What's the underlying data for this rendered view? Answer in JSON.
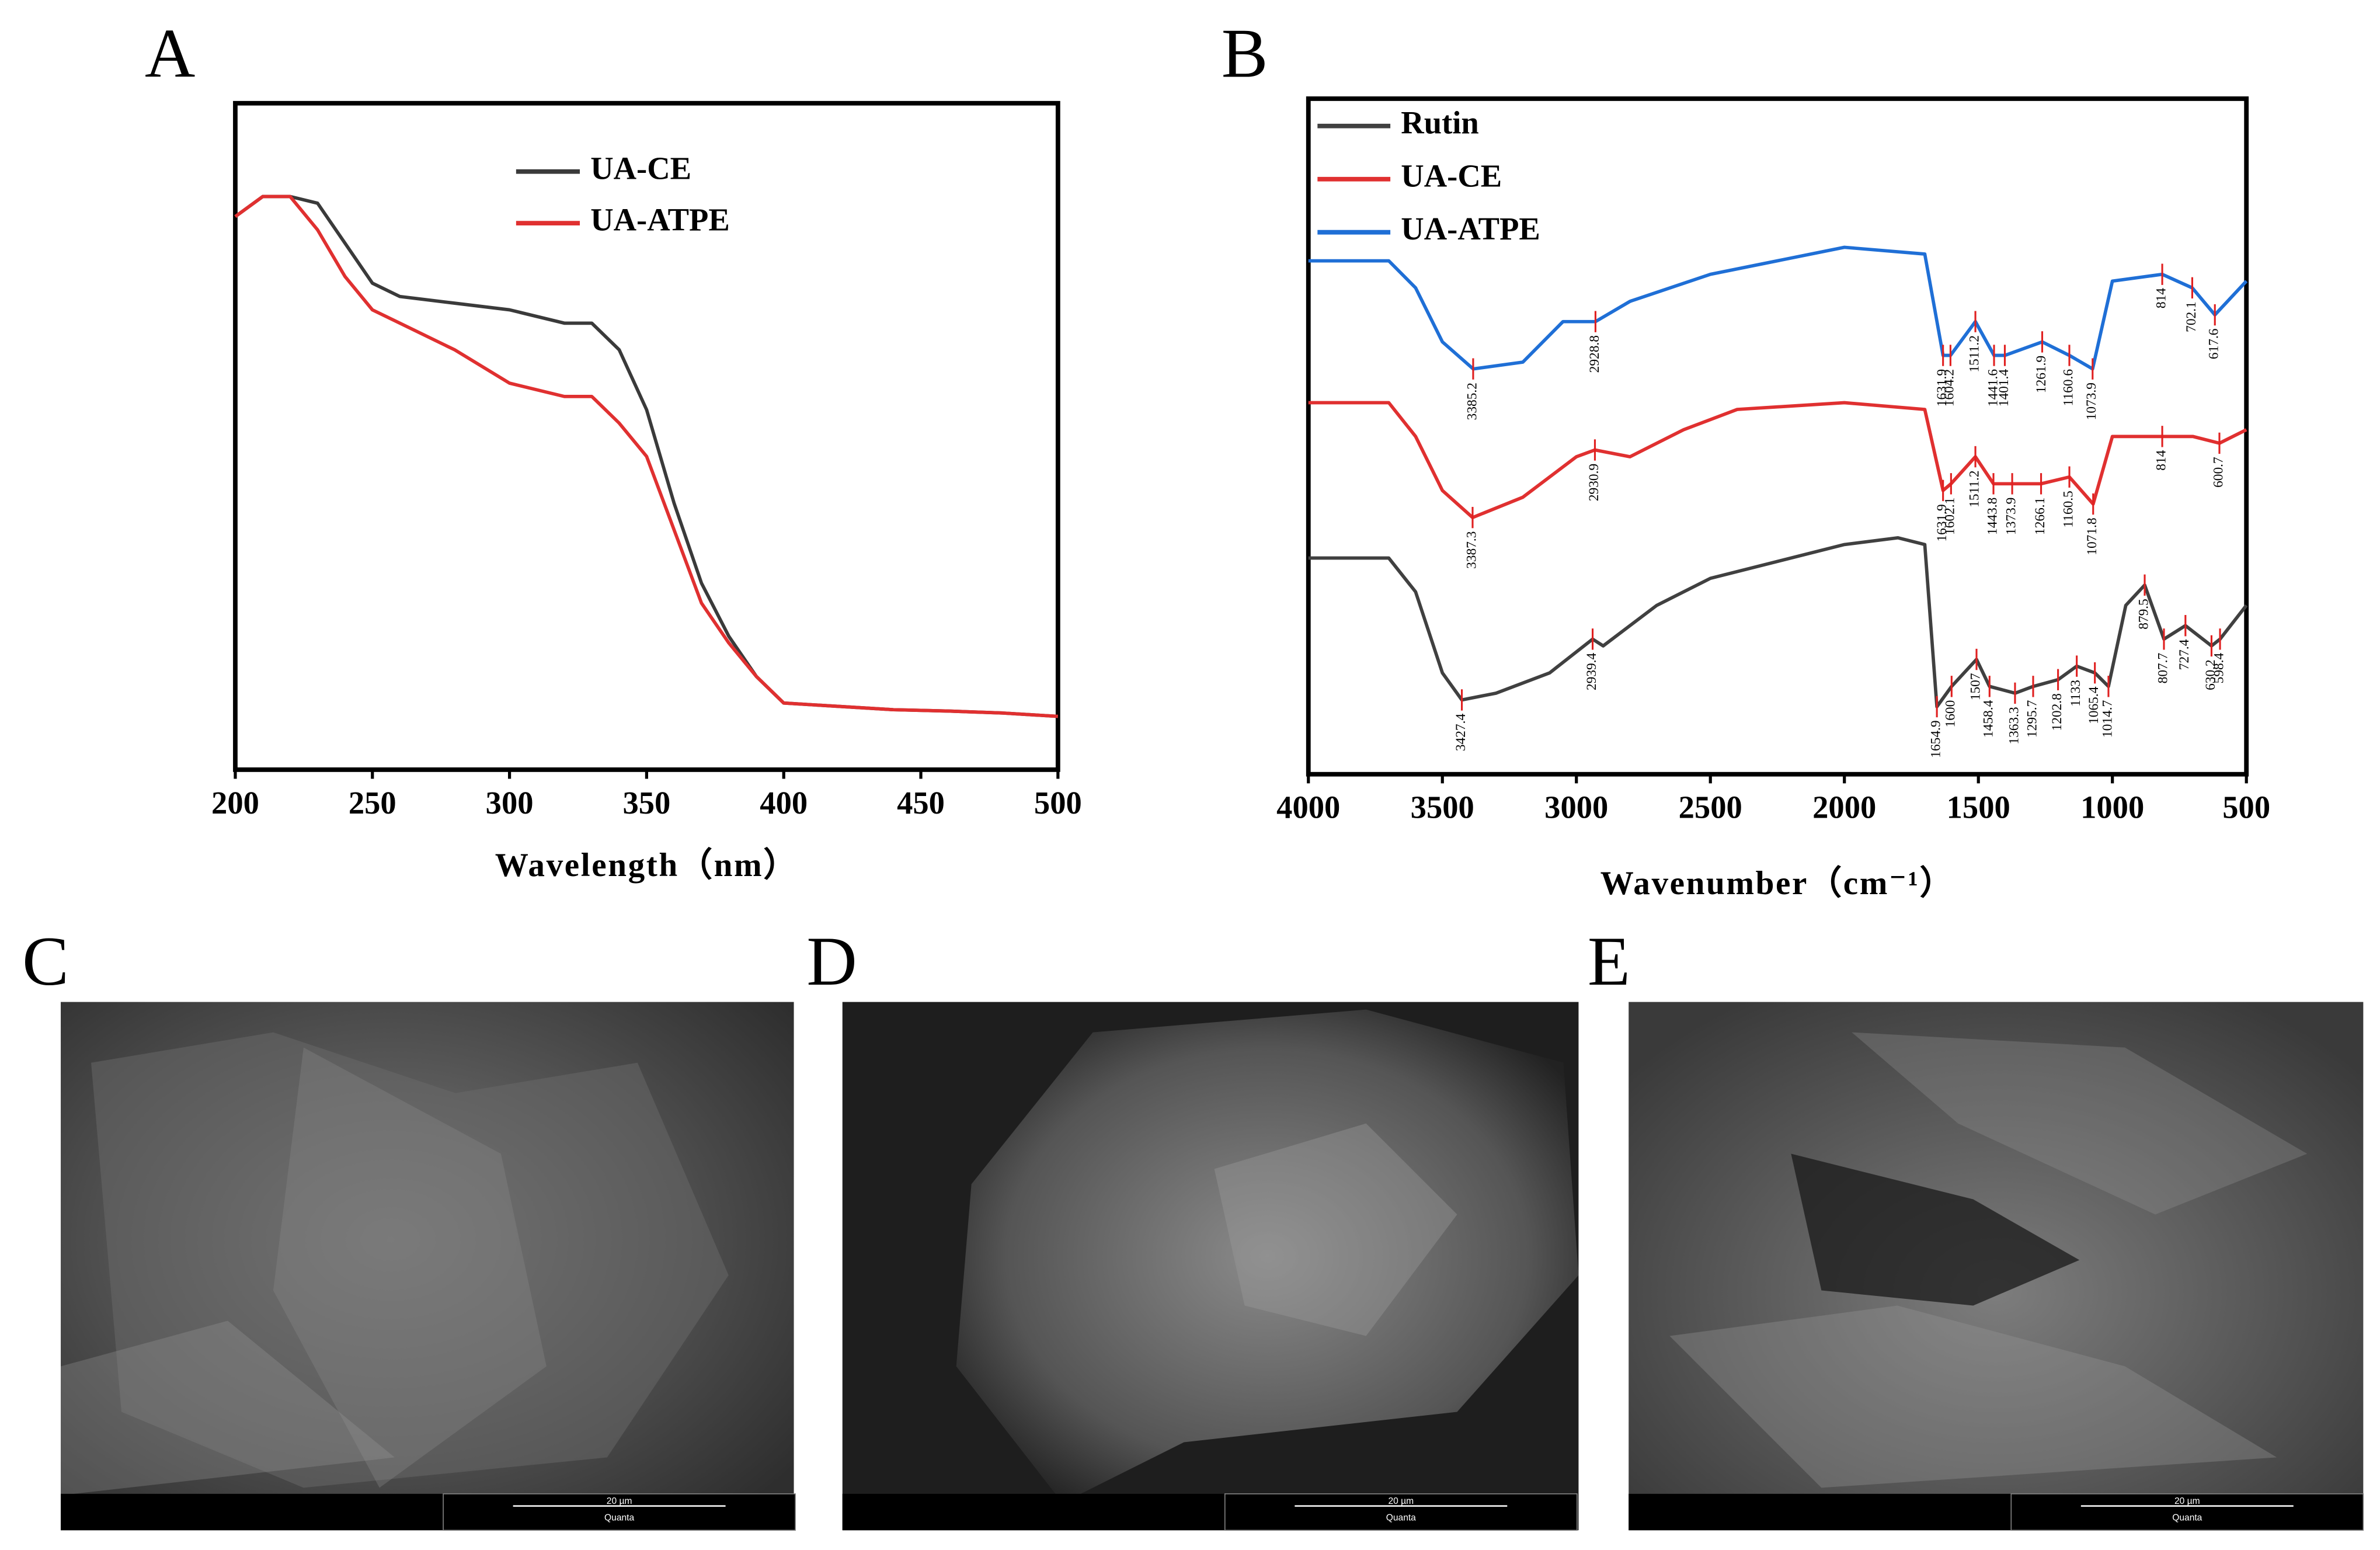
{
  "chart_data": [
    {
      "type": "line",
      "panel": "A",
      "x_label": "Wavelength（nm）",
      "legend": "upper center",
      "x": [
        200,
        210,
        220,
        230,
        240,
        250,
        260,
        280,
        300,
        320,
        330,
        340,
        350,
        360,
        370,
        380,
        390,
        400,
        420,
        440,
        460,
        480,
        500
      ],
      "series": [
        {
          "name": "UA-CE",
          "color": "#3a3a3a",
          "values": [
            0.83,
            0.86,
            0.86,
            0.85,
            0.79,
            0.73,
            0.71,
            0.7,
            0.69,
            0.67,
            0.67,
            0.63,
            0.54,
            0.4,
            0.28,
            0.2,
            0.14,
            0.1,
            0.095,
            0.09,
            0.088,
            0.085,
            0.08
          ]
        },
        {
          "name": "UA-ATPE",
          "color": "#e03030",
          "values": [
            0.83,
            0.86,
            0.86,
            0.81,
            0.74,
            0.69,
            0.67,
            0.63,
            0.58,
            0.56,
            0.56,
            0.52,
            0.47,
            0.36,
            0.25,
            0.19,
            0.14,
            0.1,
            0.095,
            0.09,
            0.088,
            0.085,
            0.08
          ]
        }
      ],
      "xlim": [
        200,
        500
      ],
      "xticks": [
        200,
        250,
        300,
        350,
        400,
        450,
        500
      ],
      "ylim": [
        0,
        1
      ]
    },
    {
      "type": "line",
      "panel": "B",
      "x_label": "Wavenumber（cm⁻¹）",
      "legend": "upper left",
      "series": [
        {
          "name": "Rutin",
          "color": "#404040",
          "x": [
            4000,
            3700,
            3600,
            3500,
            3427.4,
            3300,
            3100,
            2939.4,
            2900,
            2700,
            2500,
            2300,
            2000,
            1800,
            1700,
            1654.9,
            1600,
            1507,
            1458.4,
            1363.3,
            1295.7,
            1202.8,
            1133,
            1065.4,
            1014.7,
            950,
            879.5,
            807.7,
            727.4,
            630.2,
            598.4,
            500
          ],
          "values": [
            0.32,
            0.32,
            0.27,
            0.15,
            0.11,
            0.12,
            0.15,
            0.2,
            0.19,
            0.25,
            0.29,
            0.31,
            0.34,
            0.35,
            0.34,
            0.1,
            0.13,
            0.17,
            0.13,
            0.12,
            0.13,
            0.14,
            0.16,
            0.15,
            0.13,
            0.25,
            0.28,
            0.2,
            0.22,
            0.19,
            0.2,
            0.25
          ],
          "peaks": [
            3427.4,
            2939.4,
            1654.9,
            1600,
            1507,
            1458.4,
            1363.3,
            1295.7,
            1202.8,
            1133,
            1065.4,
            1014.7,
            879.5,
            807.7,
            727.4,
            630.2,
            598.4
          ]
        },
        {
          "name": "UA-CE",
          "color": "#e03030",
          "x": [
            4000,
            3700,
            3600,
            3500,
            3387.3,
            3200,
            3000,
            2930.9,
            2800,
            2600,
            2400,
            2000,
            1700,
            1631.9,
            1602.1,
            1511.2,
            1443.8,
            1373.9,
            1266.1,
            1160.5,
            1071.8,
            1000,
            814,
            700,
            600.7,
            500
          ],
          "values": [
            0.55,
            0.55,
            0.5,
            0.42,
            0.38,
            0.41,
            0.47,
            0.48,
            0.47,
            0.51,
            0.54,
            0.55,
            0.54,
            0.42,
            0.43,
            0.47,
            0.43,
            0.43,
            0.43,
            0.44,
            0.4,
            0.5,
            0.5,
            0.5,
            0.49,
            0.51
          ],
          "peaks": [
            3387.3,
            2930.9,
            1631.9,
            1602.1,
            1511.2,
            1443.8,
            1373.9,
            1266.1,
            1160.5,
            1071.8,
            814,
            600.7
          ]
        },
        {
          "name": "UA-ATPE",
          "color": "#1f6fd6",
          "x": [
            4000,
            3700,
            3600,
            3500,
            3385.2,
            3200,
            3050,
            2928.8,
            2800,
            2500,
            2000,
            1700,
            1631.9,
            1604.2,
            1511.2,
            1441.6,
            1401.4,
            1261.9,
            1160.6,
            1073.9,
            1000,
            814,
            702.1,
            617.6,
            500
          ],
          "values": [
            0.76,
            0.76,
            0.72,
            0.64,
            0.6,
            0.61,
            0.67,
            0.67,
            0.7,
            0.74,
            0.78,
            0.77,
            0.62,
            0.62,
            0.67,
            0.62,
            0.62,
            0.64,
            0.62,
            0.6,
            0.73,
            0.74,
            0.72,
            0.68,
            0.73
          ],
          "peaks": [
            3385.2,
            2928.8,
            1631.9,
            1604.2,
            1511.2,
            1441.6,
            1401.4,
            1261.9,
            1160.6,
            1073.9,
            814,
            702.1,
            617.6
          ]
        }
      ],
      "xlim": [
        4000,
        500
      ],
      "xticks": [
        4000,
        3500,
        3000,
        2500,
        2000,
        1500,
        1000,
        500
      ],
      "ylim": [
        0,
        1
      ]
    }
  ],
  "images": [
    {
      "panel": "C",
      "scale_bar": "20 µm",
      "caption": "Quanta"
    },
    {
      "panel": "D",
      "scale_bar": "20 µm",
      "caption": "Quanta"
    },
    {
      "panel": "E",
      "scale_bar": "20 µm",
      "caption": "Quanta"
    }
  ]
}
